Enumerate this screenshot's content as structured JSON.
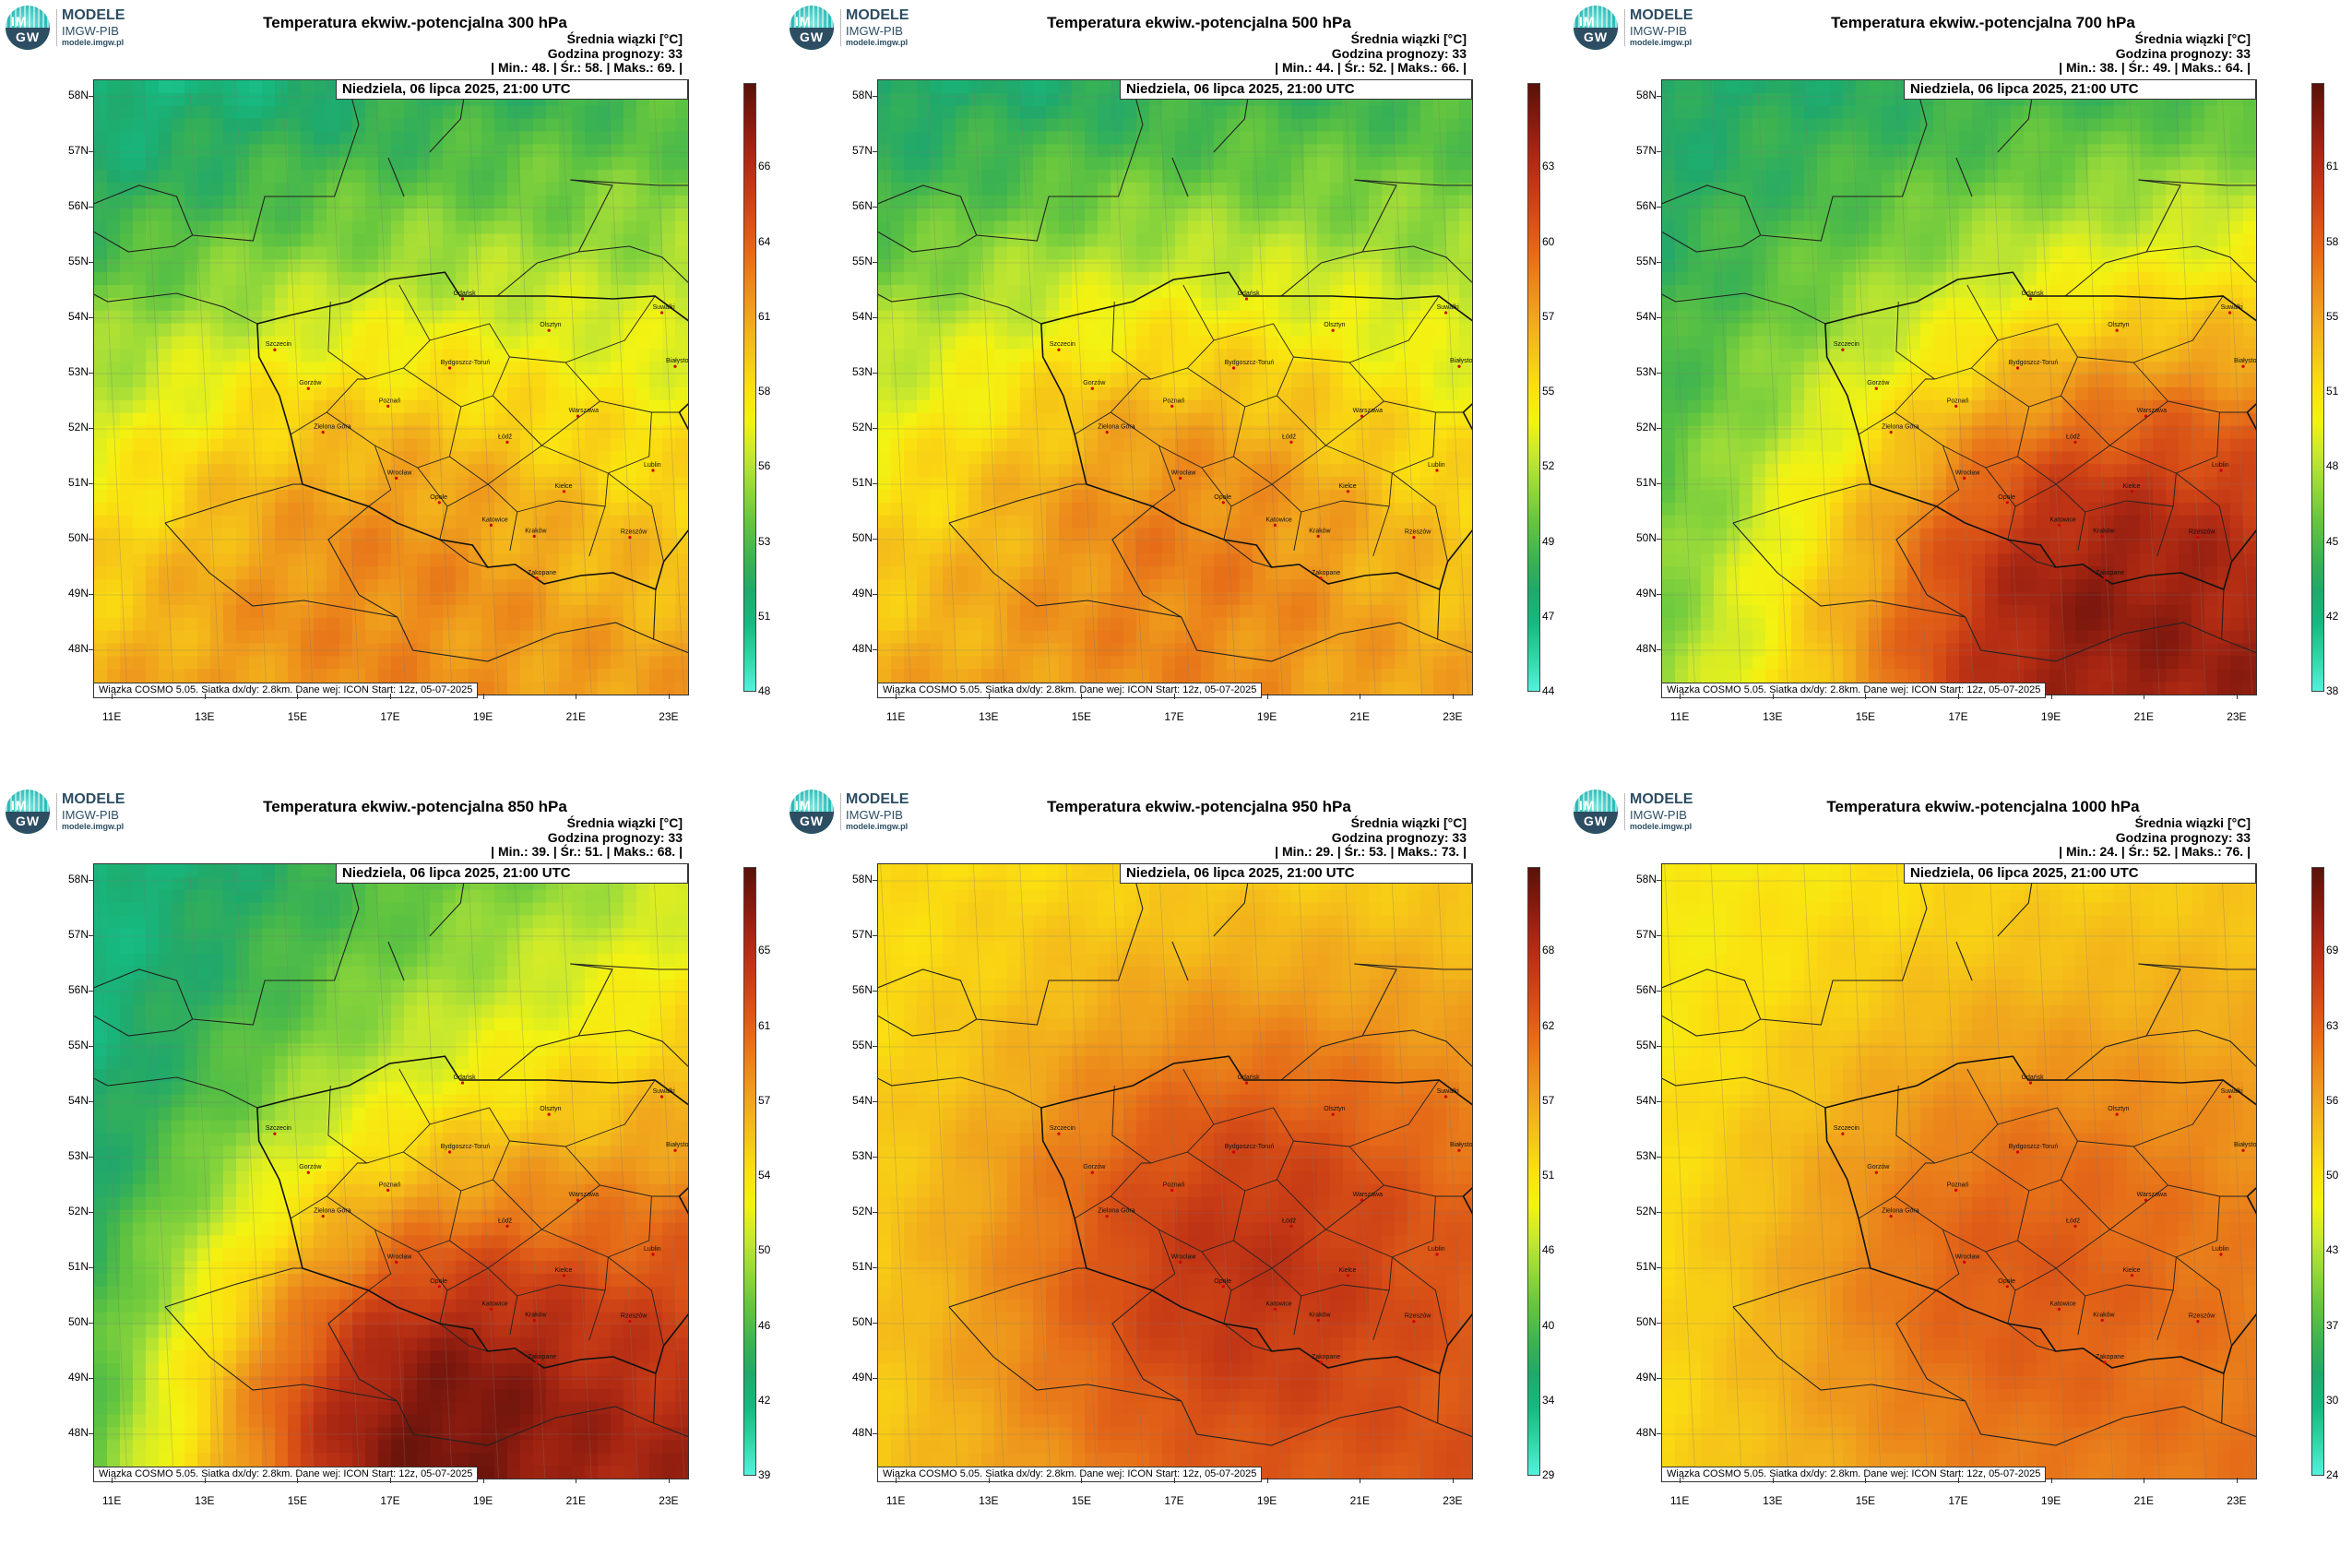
{
  "logo": {
    "im": "IM",
    "gw": "GW",
    "line1": "MODELE",
    "line2": "IMGW-PIB",
    "line3": "modele.imgw.pl"
  },
  "labels": {
    "srednia": "Średnia wiązki [°C]",
    "godzina": "Godzina prognozy: 33",
    "date": "Niedziela, 06 lipca 2025, 21:00 UTC",
    "footer": "Wiązka COSMO 5.05. Siatka dx/dy: 2.8km. Dane wej: ICON Start: 12z, 05-07-2025"
  },
  "lat_labels": [
    "58N",
    "57N",
    "56N",
    "55N",
    "54N",
    "53N",
    "52N",
    "51N",
    "50N",
    "49N",
    "48N"
  ],
  "lon_labels": [
    "11E",
    "13E",
    "15E",
    "17E",
    "19E",
    "21E",
    "23E"
  ],
  "cities": [
    {
      "name": "Gdańsk",
      "lon": 18.65,
      "lat": 54.35
    },
    {
      "name": "Olsztyn",
      "lon": 20.48,
      "lat": 53.78
    },
    {
      "name": "Suwałki",
      "lon": 22.93,
      "lat": 54.1
    },
    {
      "name": "Białystok",
      "lon": 23.16,
      "lat": 53.13
    },
    {
      "name": "Szczecin",
      "lon": 14.55,
      "lat": 53.43
    },
    {
      "name": "Bydgoszcz-Toruń",
      "lon": 18.3,
      "lat": 53.1
    },
    {
      "name": "Gorzów",
      "lon": 15.23,
      "lat": 52.73
    },
    {
      "name": "Poznań",
      "lon": 16.93,
      "lat": 52.41
    },
    {
      "name": "Warszawa",
      "lon": 21.01,
      "lat": 52.23
    },
    {
      "name": "Zielona Góra",
      "lon": 15.5,
      "lat": 51.94
    },
    {
      "name": "Łódź",
      "lon": 19.46,
      "lat": 51.76
    },
    {
      "name": "Lublin",
      "lon": 22.57,
      "lat": 51.25
    },
    {
      "name": "Wrocław",
      "lon": 17.03,
      "lat": 51.11
    },
    {
      "name": "Kielce",
      "lon": 20.63,
      "lat": 50.87
    },
    {
      "name": "Opole",
      "lon": 17.93,
      "lat": 50.67
    },
    {
      "name": "Katowice",
      "lon": 19.02,
      "lat": 50.26
    },
    {
      "name": "Kraków",
      "lon": 19.94,
      "lat": 50.06
    },
    {
      "name": "Rzeszów",
      "lon": 22.0,
      "lat": 50.04
    },
    {
      "name": "Zakopane",
      "lon": 19.95,
      "lat": 49.3
    }
  ],
  "panels": [
    {
      "title": "Temperatura ekwiw.-potencjalna 300 hPa",
      "stats": {
        "min": "48.",
        "avg": "58.",
        "max": "69."
      },
      "stats_line": "| Min.: 48. | Śr.: 58. | Maks.: 69. |",
      "colorbar_labels": [
        "48",
        "51",
        "53",
        "56",
        "58",
        "61",
        "64",
        "66"
      ],
      "field": {
        "min": 48,
        "max": 69,
        "nw": 50,
        "ne": 53,
        "sw": 60,
        "se": 61,
        "hotspot": {
          "lon": 16.5,
          "lat": 48.8,
          "value": 62
        }
      }
    },
    {
      "title": "Temperatura ekwiw.-potencjalna 500 hPa",
      "stats": {
        "min": "44.",
        "avg": "52.",
        "max": "66."
      },
      "stats_line": "| Min.: 44. | Śr.: 52. | Maks.: 66. |",
      "colorbar_labels": [
        "44",
        "47",
        "49",
        "52",
        "55",
        "57",
        "60",
        "63"
      ],
      "field": {
        "min": 44,
        "max": 66,
        "nw": 47,
        "ne": 49,
        "sw": 57,
        "se": 57,
        "hotspot": {
          "lon": 17.0,
          "lat": 49.5,
          "value": 59
        }
      }
    },
    {
      "title": "Temperatura ekwiw.-potencjalna 700 hPa",
      "stats": {
        "min": "38.",
        "avg": "49.",
        "max": "64."
      },
      "stats_line": "| Min.: 38. | Śr.: 49. | Maks.: 64. |",
      "colorbar_labels": [
        "38",
        "42",
        "45",
        "48",
        "51",
        "55",
        "58",
        "61"
      ],
      "field": {
        "min": 38,
        "max": 64,
        "nw": 42,
        "ne": 44,
        "sw": 46,
        "se": 61,
        "hotspot": {
          "lon": 20.0,
          "lat": 48.5,
          "value": 62
        }
      }
    },
    {
      "title": "Temperatura ekwiw.-potencjalna 850 hPa",
      "stats": {
        "min": "39.",
        "avg": "51.",
        "max": "68."
      },
      "stats_line": "| Min.: 39. | Śr.: 51. | Maks.: 68. |",
      "colorbar_labels": [
        "39",
        "42",
        "46",
        "50",
        "54",
        "57",
        "61",
        "65"
      ],
      "field": {
        "min": 39,
        "max": 68,
        "nw": 42,
        "ne": 50,
        "sw": 44,
        "se": 64,
        "hotspot": {
          "lon": 18.0,
          "lat": 47.9,
          "value": 67
        }
      }
    },
    {
      "title": "Temperatura ekwiw.-potencjalna 950 hPa",
      "stats": {
        "min": "29.",
        "avg": "53.",
        "max": "73."
      },
      "stats_line": "| Min.: 29. | Śr.: 53. | Maks.: 73. |",
      "colorbar_labels": [
        "29",
        "34",
        "40",
        "46",
        "51",
        "57",
        "62",
        "68"
      ],
      "field": {
        "min": 29,
        "max": 73,
        "nw": 51,
        "ne": 52,
        "sw": 52,
        "se": 62,
        "hotspot": {
          "lon": 18.5,
          "lat": 51.0,
          "value": 66
        }
      }
    },
    {
      "title": "Temperatura ekwiw.-potencjalna 1000 hPa",
      "stats": {
        "min": "24.",
        "avg": "52.",
        "max": "76."
      },
      "stats_line": "| Min.: 24. | Śr.: 52. | Maks.: 76. |",
      "colorbar_labels": [
        "24",
        "30",
        "37",
        "43",
        "50",
        "56",
        "63",
        "69"
      ],
      "field": {
        "min": 24,
        "max": 76,
        "nw": 48,
        "ne": 52,
        "sw": 50,
        "se": 60,
        "hotspot": {
          "lon": 18.5,
          "lat": 50.8,
          "value": 63
        }
      }
    }
  ]
}
